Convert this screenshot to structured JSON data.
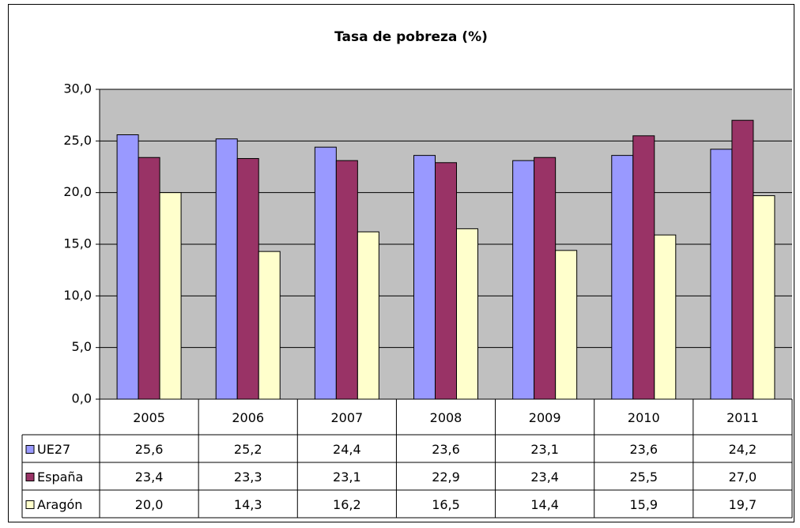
{
  "chart_data": {
    "type": "bar",
    "title": "Tasa de pobreza (%)",
    "categories": [
      "2005",
      "2006",
      "2007",
      "2008",
      "2009",
      "2010",
      "2011"
    ],
    "series": [
      {
        "name": "UE27",
        "color": "#9999ff",
        "values": [
          25.6,
          25.2,
          24.4,
          23.6,
          23.1,
          23.6,
          24.2
        ],
        "value_labels": [
          "25,6",
          "25,2",
          "24,4",
          "23,6",
          "23,1",
          "23,6",
          "24,2"
        ]
      },
      {
        "name": "España",
        "color": "#993366",
        "values": [
          23.4,
          23.3,
          23.1,
          22.9,
          23.4,
          25.5,
          27.0
        ],
        "value_labels": [
          "23,4",
          "23,3",
          "23,1",
          "22,9",
          "23,4",
          "25,5",
          "27,0"
        ]
      },
      {
        "name": "Aragón",
        "color": "#ffffcc",
        "values": [
          20.0,
          14.3,
          16.2,
          16.5,
          14.4,
          15.9,
          19.7
        ],
        "value_labels": [
          "20,0",
          "14,3",
          "16,2",
          "16,5",
          "14,4",
          "15,9",
          "19,7"
        ]
      }
    ],
    "ylim": [
      0,
      30
    ],
    "yticks": [
      {
        "value": 0,
        "label": "0,0"
      },
      {
        "value": 5,
        "label": "5,0"
      },
      {
        "value": 10,
        "label": "10,0"
      },
      {
        "value": 15,
        "label": "15,0"
      },
      {
        "value": 20,
        "label": "20,0"
      },
      {
        "value": 25,
        "label": "25,0"
      },
      {
        "value": 30,
        "label": "30,0"
      }
    ],
    "grid": true,
    "plot_background": "#c0c0c0"
  }
}
